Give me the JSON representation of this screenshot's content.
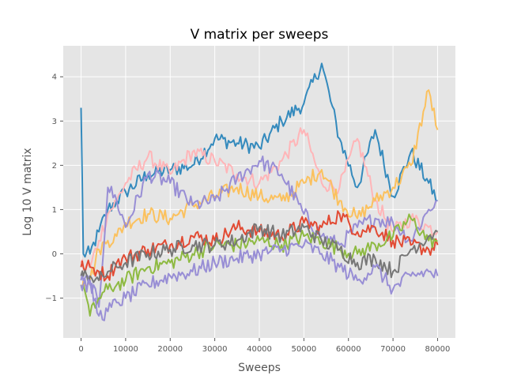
{
  "chart_data": {
    "type": "line",
    "title": "V matrix per sweeps",
    "xlabel": "Sweeps",
    "ylabel": "Log 10 V matrix",
    "xlim": [
      -4000,
      84000
    ],
    "ylim": [
      -1.9,
      4.7
    ],
    "grid": true,
    "legend": "none",
    "x_ticks": [
      0,
      10000,
      20000,
      30000,
      40000,
      50000,
      60000,
      70000,
      80000
    ],
    "x_tick_labels": [
      "0",
      "10000",
      "20000",
      "30000",
      "40000",
      "50000",
      "60000",
      "70000",
      "80000"
    ],
    "y_ticks": [
      -1,
      0,
      1,
      2,
      3,
      4
    ],
    "y_tick_labels": [
      "−1",
      "0",
      "1",
      "2",
      "3",
      "4"
    ],
    "x": [
      0,
      500,
      2000,
      4000,
      6000,
      8000,
      10000,
      15000,
      20000,
      25000,
      30000,
      35000,
      40000,
      45000,
      50000,
      54000,
      58000,
      62000,
      66000,
      70000,
      74000,
      78000,
      80000
    ],
    "series": [
      {
        "color": "#348ABD",
        "values": [
          3.3,
          0.0,
          0.0,
          0.5,
          1.0,
          1.2,
          1.4,
          1.8,
          1.9,
          2.0,
          2.6,
          2.5,
          2.4,
          3.0,
          3.4,
          4.3,
          2.6,
          1.5,
          2.8,
          1.3,
          2.3,
          1.6,
          1.2
        ]
      },
      {
        "color": "#FFB5B8",
        "values": [
          -0.2,
          -0.3,
          -0.3,
          0.3,
          0.9,
          1.2,
          1.6,
          2.2,
          1.8,
          2.3,
          2.1,
          1.8,
          1.6,
          2.1,
          2.8,
          1.6,
          1.5,
          2.6,
          1.2,
          0.5,
          0.8,
          0.6,
          0.5
        ]
      },
      {
        "color": "#FBC15E",
        "values": [
          -0.7,
          -0.6,
          -0.6,
          0.1,
          0.3,
          0.4,
          0.7,
          0.9,
          0.8,
          1.1,
          1.3,
          1.5,
          1.3,
          1.2,
          1.6,
          1.9,
          1.2,
          0.8,
          1.2,
          1.5,
          2.0,
          3.7,
          2.8
        ]
      },
      {
        "color": "#988ED5",
        "values": [
          -0.6,
          -0.6,
          -0.6,
          -1.2,
          1.5,
          1.2,
          0.6,
          1.8,
          1.6,
          1.1,
          1.2,
          1.7,
          2.1,
          1.8,
          0.9,
          0.4,
          0.2,
          0.6,
          0.8,
          0.7,
          0.3,
          1.0,
          1.2
        ]
      },
      {
        "color": "#E24A33",
        "values": [
          -0.3,
          -0.3,
          -0.3,
          -0.4,
          -0.5,
          -0.2,
          -0.1,
          0.1,
          0.2,
          0.4,
          0.3,
          0.6,
          0.5,
          0.4,
          0.7,
          0.6,
          0.9,
          0.5,
          0.6,
          0.3,
          0.2,
          0.1,
          0.2
        ]
      },
      {
        "color": "#8EBA42",
        "values": [
          -0.7,
          -0.7,
          -1.4,
          -1.0,
          -0.8,
          -0.7,
          -0.6,
          -0.3,
          -0.2,
          0.0,
          0.2,
          0.2,
          0.3,
          0.2,
          0.4,
          0.3,
          0.1,
          0.0,
          0.2,
          0.4,
          0.8,
          0.3,
          0.3
        ]
      },
      {
        "color": "#777777",
        "values": [
          -0.5,
          -0.5,
          -0.5,
          -0.6,
          -0.4,
          -0.3,
          -0.2,
          0.0,
          0.1,
          0.2,
          0.2,
          0.3,
          0.6,
          0.4,
          0.6,
          0.3,
          0.1,
          -0.2,
          -0.1,
          -0.4,
          0.1,
          0.4,
          0.5
        ]
      },
      {
        "color": "#988ED5",
        "values": [
          -0.7,
          -0.7,
          -0.7,
          -1.4,
          -1.3,
          -1.1,
          -1.0,
          -0.7,
          -0.5,
          -0.4,
          -0.2,
          -0.1,
          0.0,
          0.1,
          0.2,
          0.0,
          -0.3,
          -0.6,
          -0.3,
          -0.8,
          -0.5,
          -0.4,
          -0.5
        ]
      }
    ]
  }
}
